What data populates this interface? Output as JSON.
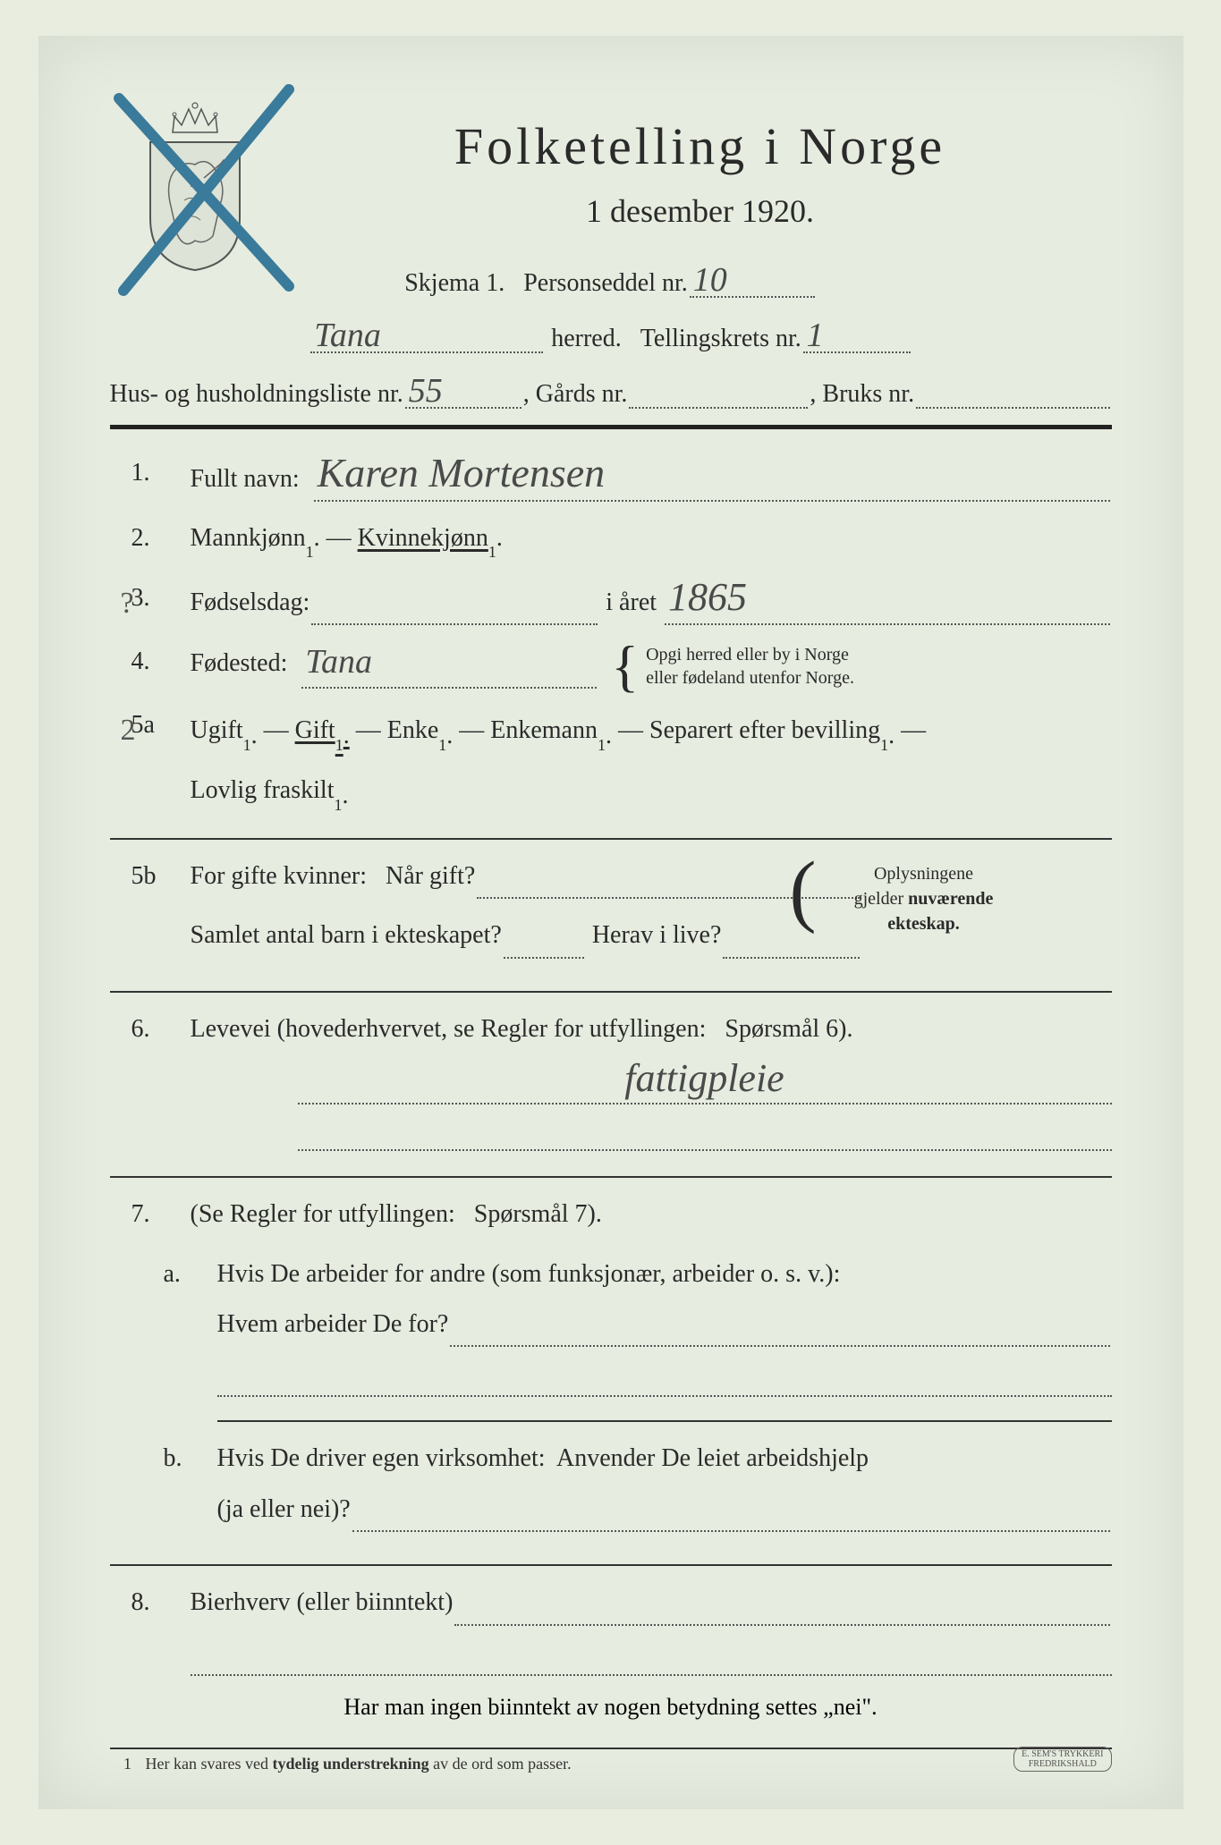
{
  "colors": {
    "background": "#e6ecdf",
    "text": "#2a2a2a",
    "dotted": "#555555",
    "handwriting": "#4a4a4a",
    "x_mark": "#3a7a9a",
    "divider": "#222222"
  },
  "header": {
    "title": "Folketelling  i  Norge",
    "subtitle": "1 desember 1920."
  },
  "form_line1": {
    "skjema": "Skjema 1.",
    "personseddel": "Personseddel nr.",
    "personseddel_value": "10"
  },
  "form_line2": {
    "herred_value": "Tana",
    "herred": "herred.",
    "tellingskrets": "Tellingskrets nr.",
    "tellingskrets_value": "1"
  },
  "form_line3": {
    "hus": "Hus- og husholdningsliste nr.",
    "hus_value": "55",
    "gards": ", Gårds nr.",
    "gards_value": "",
    "bruks": ", Bruks nr.",
    "bruks_value": ""
  },
  "q1": {
    "num": "1.",
    "label": "Fullt navn:",
    "value": "Karen Mortensen"
  },
  "q2": {
    "num": "2.",
    "m": "Mannkjønn",
    "dash": " — ",
    "k": "Kvinnekjønn",
    "sup": "1",
    "dot": "."
  },
  "q3": {
    "num": "3.",
    "label": "Fødselsdag:",
    "value_day": "",
    "mid": "i året",
    "value_year": "1865",
    "margin": "?"
  },
  "q4": {
    "num": "4.",
    "label": "Fødested:",
    "value": "Tana",
    "note1": "Opgi herred eller by i Norge",
    "note2": "eller fødeland utenfor Norge."
  },
  "q5a": {
    "num": "5a",
    "ugift": "Ugift",
    "gift": "Gift",
    "enke": "Enke",
    "enkemann": "Enkemann",
    "separert": "Separert efter bevilling",
    "fraskilt": "Lovlig fraskilt",
    "sup": "1",
    "margin": "2"
  },
  "q5b": {
    "num": "5b",
    "l1a": "For gifte kvinner:   Når gift?",
    "l2a": "Samlet antal barn i ekteskapet?",
    "l2b": "Herav i live?",
    "side1": "Oplysningene",
    "side2": "gjelder nuværende",
    "side3": "ekteskap."
  },
  "q6": {
    "num": "6.",
    "label": "Levevei (hovederhvervet, se Regler for utfyllingen:   Spørsmål 6).",
    "value": "fattigpleie"
  },
  "q7": {
    "num": "7.",
    "label": "(Se Regler for utfyllingen:   Spørsmål 7).",
    "a_num": "a.",
    "a1": "Hvis De arbeider for andre (som funksjonær, arbeider o. s. v.):",
    "a2": "Hvem arbeider De for?",
    "b_num": "b.",
    "b1": "Hvis De driver egen virksomhet:  Anvender De leiet arbeidshjelp",
    "b2": "(ja eller nei)?"
  },
  "q8": {
    "num": "8.",
    "label": "Bierhverv (eller biinntekt)"
  },
  "bottom_note": "Har man ingen biinntekt av nogen betydning settes „nei\".",
  "footnote": {
    "num": "1",
    "text": "Her kan svares ved tydelig understrekning av de ord som passer."
  },
  "printer": {
    "l1": "E. SEM'S TRYKKERI",
    "l2": "FREDRIKSHALD"
  }
}
